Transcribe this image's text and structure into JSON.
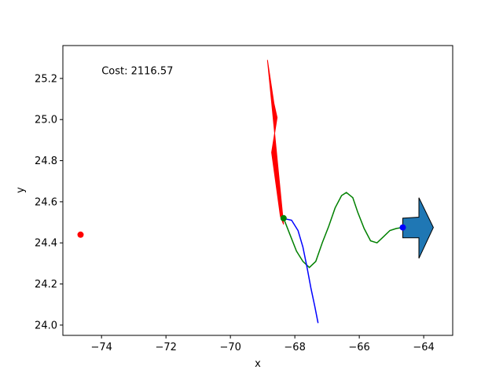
{
  "chart_data": {
    "type": "line",
    "title": "",
    "xlabel": "x",
    "ylabel": "y",
    "xlim": [
      -75.2,
      -63.1
    ],
    "ylim": [
      23.95,
      25.36
    ],
    "xticks": [
      -74,
      -72,
      -70,
      -68,
      -66,
      -64
    ],
    "yticks": [
      24.0,
      24.2,
      24.4,
      24.6,
      24.8,
      25.0,
      25.2
    ],
    "grid": false,
    "annotation": {
      "text": "Cost: 2116.57",
      "x": -74.0,
      "y": 25.22
    },
    "series": [
      {
        "kind": "line",
        "color": "#008000",
        "points": [
          [
            -68.35,
            24.52
          ],
          [
            -68.15,
            24.44
          ],
          [
            -67.95,
            24.36
          ],
          [
            -67.75,
            24.31
          ],
          [
            -67.55,
            24.28
          ],
          [
            -67.35,
            24.31
          ],
          [
            -67.15,
            24.4
          ],
          [
            -66.95,
            24.48
          ],
          [
            -66.75,
            24.57
          ],
          [
            -66.55,
            24.63
          ],
          [
            -66.4,
            24.645
          ],
          [
            -66.2,
            24.62
          ],
          [
            -66.05,
            24.55
          ],
          [
            -65.85,
            24.47
          ],
          [
            -65.65,
            24.41
          ],
          [
            -65.45,
            24.4
          ],
          [
            -65.25,
            24.43
          ],
          [
            -65.05,
            24.46
          ],
          [
            -64.85,
            24.47
          ],
          [
            -64.65,
            24.475
          ]
        ]
      },
      {
        "kind": "line",
        "color": "#0000ff",
        "points": [
          [
            -68.4,
            24.52
          ],
          [
            -68.1,
            24.51
          ],
          [
            -67.9,
            24.46
          ],
          [
            -67.75,
            24.38
          ],
          [
            -67.62,
            24.28
          ],
          [
            -67.5,
            24.18
          ],
          [
            -67.38,
            24.09
          ],
          [
            -67.28,
            24.01
          ]
        ]
      },
      {
        "kind": "point",
        "color": "#ff0000",
        "points": [
          [
            -74.65,
            24.44
          ]
        ]
      },
      {
        "kind": "point",
        "color": "#008000",
        "points": [
          [
            -68.35,
            24.52
          ]
        ]
      },
      {
        "kind": "point",
        "color": "#0000ff",
        "points": [
          [
            -64.65,
            24.475
          ]
        ]
      },
      {
        "kind": "polygon",
        "color": "#ff0000",
        "stroke": "#ff0000",
        "points": [
          [
            -68.85,
            25.29
          ],
          [
            -68.65,
            25.08
          ],
          [
            -68.55,
            25.01
          ],
          [
            -68.72,
            24.84
          ],
          [
            -68.45,
            24.53
          ],
          [
            -68.35,
            24.49
          ]
        ]
      },
      {
        "kind": "polygon",
        "color": "#1f77b4",
        "stroke": "#000000",
        "points": [
          [
            -64.65,
            24.52
          ],
          [
            -64.15,
            24.525
          ],
          [
            -64.15,
            24.62
          ],
          [
            -63.7,
            24.475
          ],
          [
            -64.15,
            24.325
          ],
          [
            -64.15,
            24.425
          ],
          [
            -64.65,
            24.425
          ]
        ]
      }
    ]
  }
}
